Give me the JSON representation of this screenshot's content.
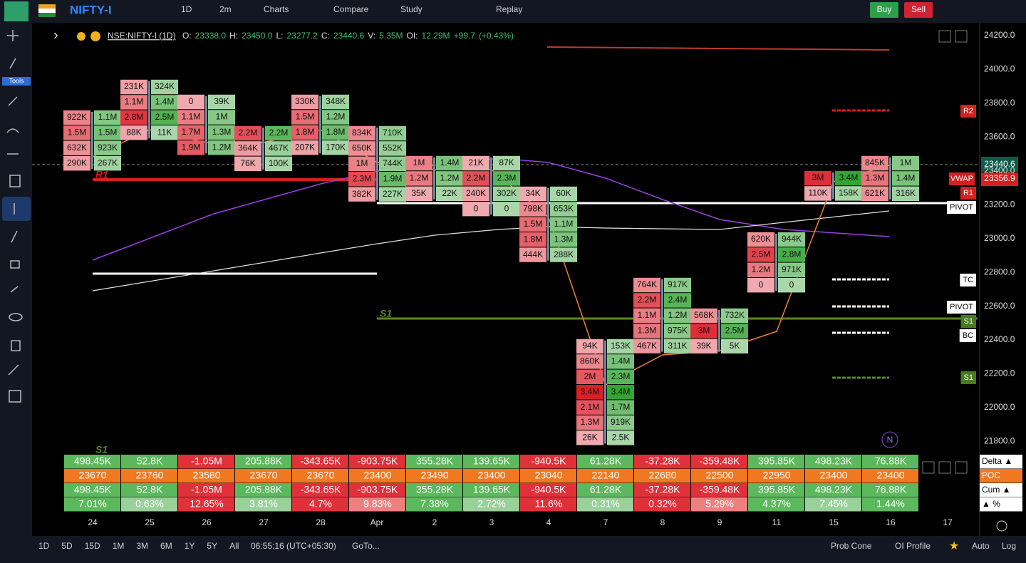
{
  "toolbar": {
    "symbol": "NIFTY-I",
    "interval": "1D",
    "timeframe": "2m",
    "charts": "Charts",
    "compare": "Compare",
    "study": "Study",
    "replay": "Replay",
    "buy": "Buy",
    "sell": "Sell"
  },
  "tools_label": "Tools",
  "legend": {
    "symbol": "NSE:NIFTY-I (1D)",
    "items": [
      "O:",
      "23338.0",
      "H:",
      "23450.0",
      "L:",
      "23277.2",
      "C:",
      "23440.6",
      "V:",
      "5.35M",
      "OI:",
      "12.29M",
      "+99.7",
      "(+0.43%)"
    ]
  },
  "price_axis": [
    "24200.0",
    "24000.0",
    "23800.0",
    "23600.0",
    "23400.0",
    "23200.0",
    "23000.0",
    "22800.0",
    "22600.0",
    "22400.0",
    "22200.0",
    "22000.0",
    "21800.0"
  ],
  "price_tags": {
    "last": "23440.6",
    "vwap_label": "VWAP",
    "vwap": "23356.9"
  },
  "levels": [
    "R2",
    "R1",
    "PIVOT",
    "TC",
    "PIVOT",
    "S1",
    "BC",
    "S1"
  ],
  "chart_labels": {
    "r1": "R1",
    "s1": "S1",
    "s1_low": "S1",
    "n": "N"
  },
  "dates": [
    "24",
    "25",
    "26",
    "27",
    "28",
    "Apr",
    "2",
    "3",
    "4",
    "7",
    "8",
    "9",
    "11",
    "15",
    "16",
    "17"
  ],
  "footprint": [
    {
      "sell": [
        "922K",
        "1.5M",
        "632K",
        "290K"
      ],
      "buy": [
        "1.1M",
        "1.5M",
        "923K",
        "267K"
      ]
    },
    {
      "sell": [
        "231K",
        "1.1M",
        "2.8M",
        "88K"
      ],
      "buy": [
        "324K",
        "1.4M",
        "2.5M",
        "11K"
      ]
    },
    {
      "sell": [
        "0",
        "1.1M",
        "1.7M",
        "1.9M"
      ],
      "buy": [
        "39K",
        "1M",
        "1.3M",
        "1.2M"
      ]
    },
    {
      "sell": [
        "2.2M",
        "364K",
        "76K"
      ],
      "buy": [
        "2.2M",
        "467K",
        "100K"
      ]
    },
    {
      "sell": [
        "330K",
        "1.5M",
        "1.8M",
        "207K"
      ],
      "buy": [
        "348K",
        "1.2M",
        "1.8M",
        "170K"
      ]
    },
    {
      "sell": [
        "834K",
        "650K",
        "1M",
        "2.3M",
        "382K"
      ],
      "buy": [
        "710K",
        "552K",
        "744K",
        "1.9M",
        "227K"
      ]
    },
    {
      "sell": [
        "1M",
        "1.2M",
        "35K"
      ],
      "buy": [
        "1.4M",
        "1.2M",
        "22K"
      ]
    },
    {
      "sell": [
        "21K",
        "2.2M",
        "240K",
        "0"
      ],
      "buy": [
        "87K",
        "2.3M",
        "302K",
        "0"
      ]
    },
    {
      "sell": [
        "34K",
        "798K",
        "1.5M",
        "1.8M",
        "444K"
      ],
      "buy": [
        "60K",
        "653K",
        "1.1M",
        "1.3M",
        "288K"
      ]
    },
    {
      "sell": [
        "94K",
        "860K",
        "2M",
        "3.4M",
        "2.1M",
        "1.3M",
        "26K"
      ],
      "buy": [
        "153K",
        "1.4M",
        "2.3M",
        "3.4M",
        "1.7M",
        "919K",
        "2.5K"
      ]
    },
    {
      "sell": [
        "764K",
        "2.2M",
        "1.1M",
        "1.3M",
        "467K"
      ],
      "buy": [
        "917K",
        "2.4M",
        "1.2M",
        "975K",
        "311K"
      ]
    },
    {
      "sell": [
        "568K",
        "3M",
        "39K"
      ],
      "buy": [
        "732K",
        "2.5M",
        "5K"
      ]
    },
    {
      "sell": [
        "620K",
        "2.5M",
        "1.2M",
        "0"
      ],
      "buy": [
        "944K",
        "2.8M",
        "971K",
        "0"
      ]
    },
    {
      "sell": [
        "3M",
        "110K"
      ],
      "buy": [
        "3.4M",
        "158K"
      ]
    },
    {
      "sell": [
        "845K",
        "1.3M",
        "621K"
      ],
      "buy": [
        "1M",
        "1.4M",
        "316K"
      ]
    }
  ],
  "stats": {
    "row_labels": [
      "Delta ▲",
      "POC",
      "Cum ▲",
      "▲ %"
    ],
    "delta": [
      "498.45K",
      "52.8K",
      "-1.05M",
      "205.88K",
      "-343.65K",
      "-903.75K",
      "355.28K",
      "139.65K",
      "-940.5K",
      "61.28K",
      "-37.28K",
      "-359.48K",
      "395.85K",
      "498.23K",
      "76.88K"
    ],
    "poc": [
      "23670",
      "23760",
      "23580",
      "23670",
      "23670",
      "23400",
      "23490",
      "23400",
      "23040",
      "22140",
      "22680",
      "22500",
      "22950",
      "23400",
      "23400"
    ],
    "cum": [
      "498.45K",
      "52.8K",
      "-1.05M",
      "205.88K",
      "-343.65K",
      "-903.75K",
      "355.28K",
      "139.65K",
      "-940.5K",
      "61.28K",
      "-37.28K",
      "-359.48K",
      "395.85K",
      "498.23K",
      "76.88K"
    ],
    "pct": [
      "7.01%",
      "0.63%",
      "12.65%",
      "3.81%",
      "4.7%",
      "9.83%",
      "7.38%",
      "2.72%",
      "11.6%",
      "0.31%",
      "0.32%",
      "5.29%",
      "4.37%",
      "7.45%",
      "1.44%"
    ]
  },
  "bottom_bar": {
    "ranges": [
      "1D",
      "5D",
      "15D",
      "1M",
      "3M",
      "6M",
      "1Y",
      "5Y",
      "All"
    ],
    "clock": "06:55:16 (UTC+05:30)",
    "goto": "GoTo...",
    "right": [
      "Prob Cone",
      "OI Profile",
      "Auto",
      "Log"
    ]
  }
}
